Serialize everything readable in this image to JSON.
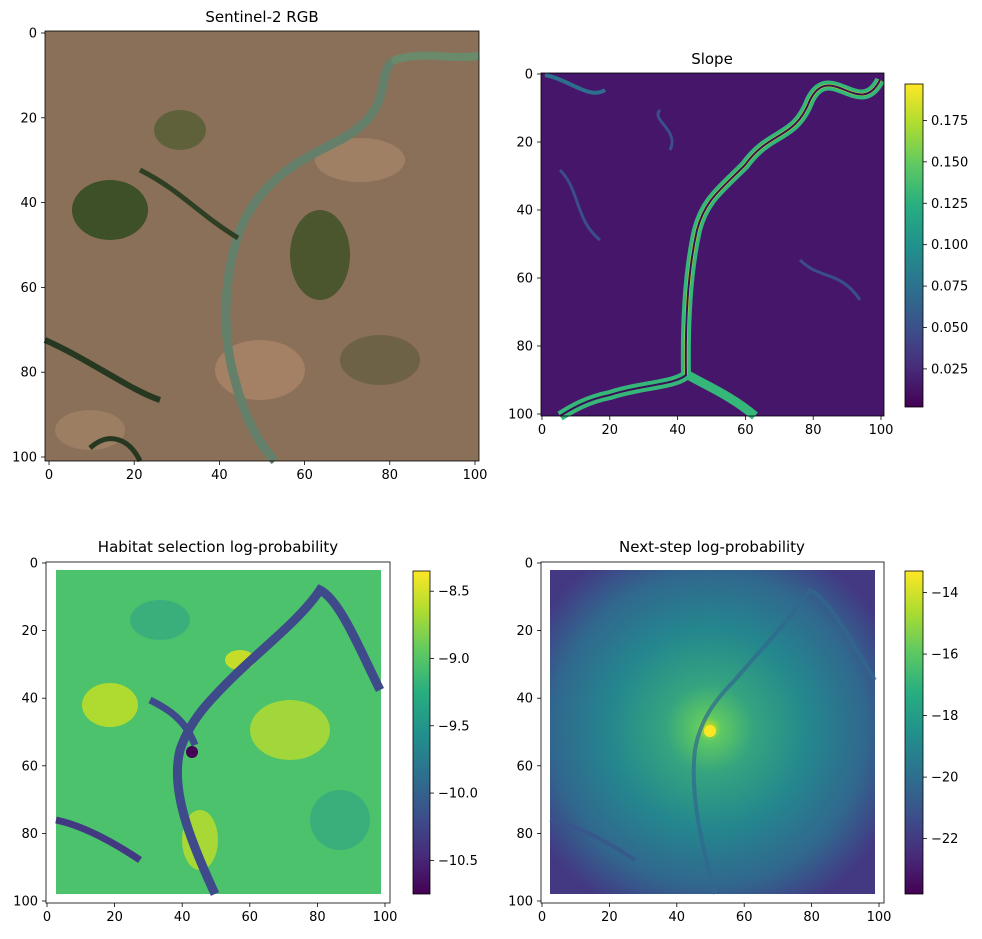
{
  "chart_data": [
    {
      "type": "heatmap",
      "title": "Sentinel-2 RGB",
      "image": "rgb",
      "xlim": [
        0,
        100
      ],
      "ylim": [
        100,
        0
      ],
      "xticks": [
        "0",
        "20",
        "40",
        "60",
        "80",
        "100"
      ],
      "yticks": [
        "0",
        "20",
        "40",
        "60",
        "80",
        "100"
      ],
      "colorbar": null
    },
    {
      "type": "heatmap",
      "title": "Slope",
      "image": "slope",
      "colormap": "viridis",
      "xlim": [
        0,
        100
      ],
      "ylim": [
        100,
        0
      ],
      "xticks": [
        "0",
        "20",
        "40",
        "60",
        "80",
        "100"
      ],
      "yticks": [
        "0",
        "20",
        "40",
        "60",
        "80",
        "100"
      ],
      "colorbar": {
        "range": [
          0.002,
          0.197
        ],
        "ticks": [
          0.025,
          0.05,
          0.075,
          0.1,
          0.125,
          0.15,
          0.175
        ],
        "tick_labels": [
          "0.025",
          "0.050",
          "0.075",
          "0.100",
          "0.125",
          "0.150",
          "0.175"
        ]
      }
    },
    {
      "type": "heatmap",
      "title": "Habitat selection log-probability",
      "image": "habitat",
      "colormap": "viridis",
      "xlim": [
        0,
        100
      ],
      "ylim": [
        100,
        0
      ],
      "xticks": [
        "0",
        "20",
        "40",
        "60",
        "80",
        "100"
      ],
      "yticks": [
        "0",
        "20",
        "40",
        "60",
        "80",
        "100"
      ],
      "colorbar": {
        "range": [
          -10.75,
          -8.35
        ],
        "ticks": [
          -10.5,
          -10.0,
          -9.5,
          -9.0,
          -8.5
        ],
        "tick_labels": [
          "−10.5",
          "−10.0",
          "−9.5",
          "−9.0",
          "−8.5"
        ]
      }
    },
    {
      "type": "heatmap",
      "title": "Next-step log-probability",
      "image": "nextstep",
      "colormap": "viridis",
      "xlim": [
        0,
        100
      ],
      "ylim": [
        100,
        0
      ],
      "xticks": [
        "0",
        "20",
        "40",
        "60",
        "80",
        "100"
      ],
      "yticks": [
        "0",
        "20",
        "40",
        "60",
        "80",
        "100"
      ],
      "colorbar": {
        "range": [
          -23.8,
          -13.3
        ],
        "ticks": [
          -22,
          -20,
          -18,
          -16,
          -14
        ],
        "tick_labels": [
          "−22",
          "−20",
          "−18",
          "−16",
          "−14"
        ]
      }
    }
  ]
}
